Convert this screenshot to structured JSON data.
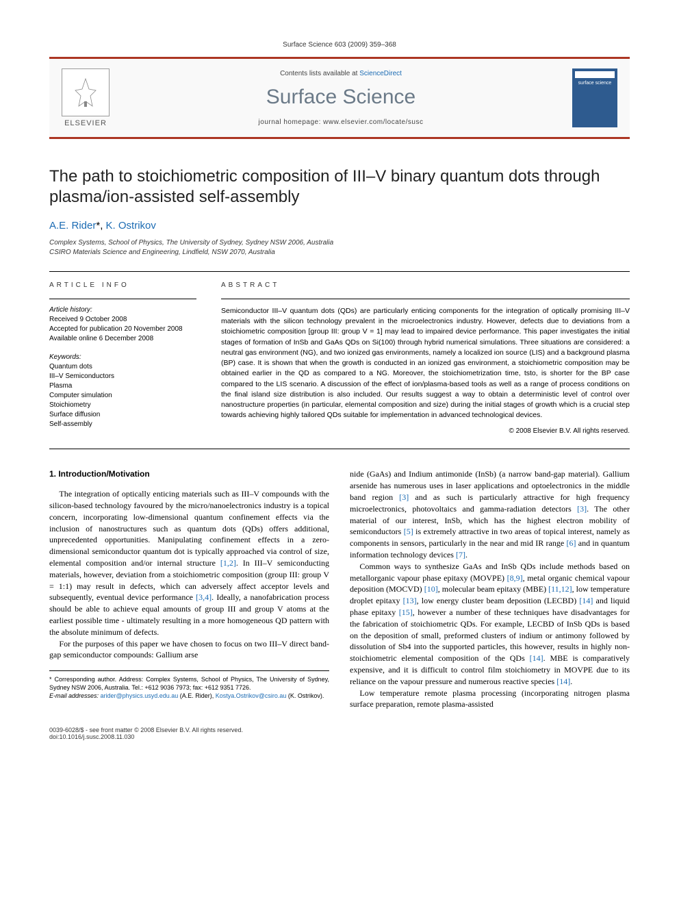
{
  "header": {
    "citation": "Surface Science 603 (2009) 359–368"
  },
  "banner": {
    "elsevier_label": "ELSEVIER",
    "contents_prefix": "Contents lists available at ",
    "contents_link": "ScienceDirect",
    "journal_title": "Surface Science",
    "homepage_prefix": "journal homepage: ",
    "homepage_url": "www.elsevier.com/locate/susc",
    "cover_label": "surface science"
  },
  "title": "The path to stoichiometric composition of III–V binary quantum dots through plasma/ion-assisted self-assembly",
  "authors": {
    "a1_name": "A.E. Rider",
    "a1_marker": "*",
    "a2_name": "K. Ostrikov"
  },
  "affiliations": {
    "line1": "Complex Systems, School of Physics, The University of Sydney, Sydney NSW 2006, Australia",
    "line2": "CSIRO Materials Science and Engineering, Lindfield, NSW 2070, Australia"
  },
  "article_info": {
    "heading": "ARTICLE INFO",
    "history_label": "Article history:",
    "received": "Received 9 October 2008",
    "accepted": "Accepted for publication 20 November 2008",
    "online": "Available online 6 December 2008",
    "keywords_label": "Keywords:",
    "keywords": [
      "Quantum dots",
      "III–V Semiconductors",
      "Plasma",
      "Computer simulation",
      "Stoichiometry",
      "Surface diffusion",
      "Self-assembly"
    ]
  },
  "abstract": {
    "heading": "ABSTRACT",
    "text": "Semiconductor III–V quantum dots (QDs) are particularly enticing components for the integration of optically promising III–V materials with the silicon technology prevalent in the microelectronics industry. However, defects due to deviations from a stoichiometric composition [group III: group V = 1] may lead to impaired device performance. This paper investigates the initial stages of formation of InSb and GaAs QDs on Si(100) through hybrid numerical simulations. Three situations are considered: a neutral gas environment (NG), and two ionized gas environments, namely a localized ion source (LIS) and a background plasma (BP) case. It is shown that when the growth is conducted in an ionized gas environment, a stoichiometric composition may be obtained earlier in the QD as compared to a NG. Moreover, the stoichiometrization time, tsto, is shorter for the BP case compared to the LIS scenario. A discussion of the effect of ion/plasma-based tools as well as a range of process conditions on the final island size distribution is also included. Our results suggest a way to obtain a deterministic level of control over nanostructure properties (in particular, elemental composition and size) during the initial stages of growth which is a crucial step towards achieving highly tailored QDs suitable for implementation in advanced technological devices.",
    "copyright": "© 2008 Elsevier B.V. All rights reserved."
  },
  "section1": {
    "heading": "1. Introduction/Motivation",
    "p1": "The integration of optically enticing materials such as III–V compounds with the silicon-based technology favoured by the micro/nanoelectronics industry is a topical concern, incorporating low-dimensional quantum confinement effects via the inclusion of nanostructures such as quantum dots (QDs) offers additional, unprecedented opportunities. Manipulating confinement effects in a zero-dimensional semiconductor quantum dot is typically approached via control of size, elemental composition and/or internal structure [1,2]. In III–V semiconducting materials, however, deviation from a stoichiometric composition (group III: group V = 1:1) may result in defects, which can adversely affect acceptor levels and subsequently, eventual device performance [3,4]. Ideally, a nanofabrication process should be able to achieve equal amounts of group III and group V atoms at the earliest possible time - ultimately resulting in a more homogeneous QD pattern with the absolute minimum of defects.",
    "p2a": "For the purposes of this paper we have chosen to focus on two III–V direct band-gap semiconductor compounds: Gallium arse",
    "p2b": "nide (GaAs) and Indium antimonide (InSb) (a narrow band-gap material). Gallium arsenide has numerous uses in laser applications and optoelectronics in the middle band region [3] and as such is particularly attractive for high frequency microelectronics, photovoltaics and gamma-radiation detectors [3]. The other material of our interest, InSb, which has the highest electron mobility of semiconductors [5] is extremely attractive in two areas of topical interest, namely as components in sensors, particularly in the near and mid IR range [6] and in quantum information technology devices [7].",
    "p3": "Common ways to synthesize GaAs and InSb QDs include methods based on metallorganic vapour phase epitaxy (MOVPE) [8,9], metal organic chemical vapour deposition (MOCVD) [10], molecular beam epitaxy (MBE) [11,12], low temperature droplet epitaxy [13], low energy cluster beam deposition (LECBD) [14] and liquid phase epitaxy [15], however a number of these techniques have disadvantages for the fabrication of stoichiometric QDs. For example, LECBD of InSb QDs is based on the deposition of small, preformed clusters of indium or antimony followed by dissolution of Sb4 into the supported particles, this however, results in highly non-stoichiometric elemental composition of the QDs [14]. MBE is comparatively expensive, and it is difficult to control film stoichiometry in MOVPE due to its reliance on the vapour pressure and numerous reactive species [14].",
    "p4": "Low temperature remote plasma processing (incorporating nitrogen plasma surface preparation, remote plasma-assisted"
  },
  "footnote": {
    "corr": "* Corresponding author. Address: Complex Systems, School of Physics, The University of Sydney, Sydney NSW 2006, Australia. Tel.: +612 9036 7973; fax: +612 9351 7726.",
    "email_label": "E-mail addresses: ",
    "email1": "arider@physics.usyd.edu.au",
    "email1_who": " (A.E. Rider), ",
    "email2": "Kostya.Ostrikov@csiro.au",
    "email2_who": " (K. Ostrikov)."
  },
  "footer": {
    "left1": "0039-6028/$ - see front matter © 2008 Elsevier B.V. All rights reserved.",
    "left2": "doi:10.1016/j.susc.2008.11.030"
  },
  "colors": {
    "accent": "#ac3623",
    "link": "#1b6bb3",
    "journal_title": "#6b7a88",
    "cover_bg": "#2e5b8f"
  }
}
